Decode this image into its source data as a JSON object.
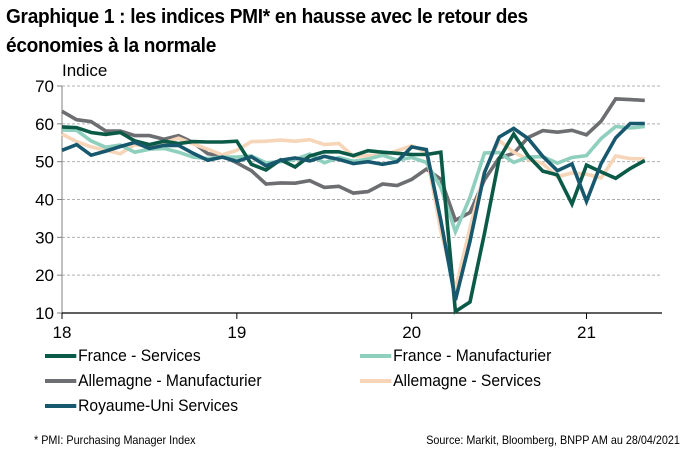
{
  "title": "Graphique 1 : les indices PMI* en hausse avec le retour des économies à la normale",
  "title_line1": "Graphique 1 : les indices PMI* en hausse avec le retour des",
  "title_line2": "économies à la normale",
  "footnote": "* PMI: Purchasing Manager Index",
  "source": "Source: Markit, Bloomberg, BNPP AM au 28/04/2021",
  "chart_data": {
    "type": "line",
    "title": "les indices PMI* en hausse avec le retour des économies à la normale",
    "xlabel": "",
    "ylabel": "Indice",
    "ylim": [
      10,
      70
    ],
    "yticks": [
      10,
      20,
      30,
      40,
      50,
      60,
      70
    ],
    "xticks": [
      "18",
      "19",
      "20",
      "21"
    ],
    "x_note": "monthly observations from Jan 2018 (index 0) to ~May 2021 (index 40); year ticks at indices 0, 12, 24, 36",
    "grid": true,
    "legend_position": "bottom",
    "series": [
      {
        "name": "France - Services",
        "color": "#0b5a47",
        "values": [
          59.2,
          59.0,
          57.7,
          57.2,
          57.7,
          55.5,
          54.5,
          55.4,
          54.8,
          55.3,
          55.2,
          55.2,
          55.4,
          49.3,
          47.8,
          50.5,
          48.6,
          51.5,
          52.6,
          52.6,
          51.6,
          52.9,
          52.5,
          52.2,
          51.9,
          51.9,
          52.5,
          10.4,
          12.9,
          31.1,
          50.7,
          57.3,
          51.5,
          47.5,
          46.5,
          38.8,
          49.1,
          47.3,
          45.6,
          48.2,
          50.3
        ]
      },
      {
        "name": "France - Manufacturier",
        "color": "#8fcfbd",
        "values": [
          58.4,
          58.3,
          55.5,
          53.8,
          54.4,
          52.5,
          53.3,
          53.5,
          52.5,
          51.2,
          50.8,
          51.2,
          51.2,
          51.5,
          49.7,
          50.0,
          50.6,
          52.0,
          49.7,
          51.1,
          50.1,
          50.7,
          51.7,
          50.4,
          51.1,
          49.8,
          43.2,
          31.5,
          40.6,
          52.3,
          52.4,
          49.8,
          51.2,
          51.3,
          49.6,
          51.1,
          51.6,
          56.1,
          59.3,
          58.9,
          59.3
        ]
      },
      {
        "name": "Allemagne - Manufacturier",
        "color": "#6d6e71",
        "values": [
          63.3,
          61.1,
          60.6,
          58.1,
          58.1,
          56.9,
          56.9,
          55.9,
          56.9,
          55.1,
          52.1,
          51.5,
          49.7,
          47.6,
          44.1,
          44.4,
          44.3,
          45.0,
          43.2,
          43.5,
          41.7,
          42.1,
          44.1,
          43.7,
          45.3,
          48.0,
          45.4,
          34.5,
          36.6,
          45.2,
          51.0,
          52.2,
          56.4,
          58.2,
          57.8,
          58.3,
          57.1,
          60.7,
          66.6,
          66.4,
          66.2
        ]
      },
      {
        "name": "Allemagne - Services",
        "color": "#f6d5b8",
        "values": [
          57.3,
          55.3,
          53.9,
          53.0,
          52.1,
          54.5,
          54.1,
          55.0,
          56.2,
          54.7,
          53.3,
          51.8,
          53.0,
          55.3,
          55.4,
          55.7,
          55.4,
          55.8,
          54.5,
          54.8,
          51.4,
          51.6,
          51.7,
          52.9,
          54.2,
          52.5,
          31.7,
          16.2,
          32.6,
          47.3,
          55.6,
          52.5,
          50.6,
          49.5,
          46.0,
          47.0,
          46.7,
          45.7,
          51.5,
          50.8,
          50.7
        ]
      },
      {
        "name": "Royaume-Uni Services",
        "color": "#17586e",
        "values": [
          53.0,
          54.5,
          51.7,
          52.8,
          54.0,
          55.1,
          53.5,
          54.3,
          54.3,
          52.2,
          50.4,
          51.2,
          50.1,
          51.3,
          48.9,
          50.4,
          51.0,
          50.2,
          51.4,
          50.6,
          49.5,
          50.0,
          49.3,
          50.0,
          53.9,
          53.2,
          34.5,
          13.4,
          29.0,
          47.1,
          56.5,
          58.8,
          56.1,
          51.4,
          47.6,
          49.4,
          39.5,
          49.5,
          56.3,
          60.1,
          60.1
        ]
      }
    ]
  }
}
